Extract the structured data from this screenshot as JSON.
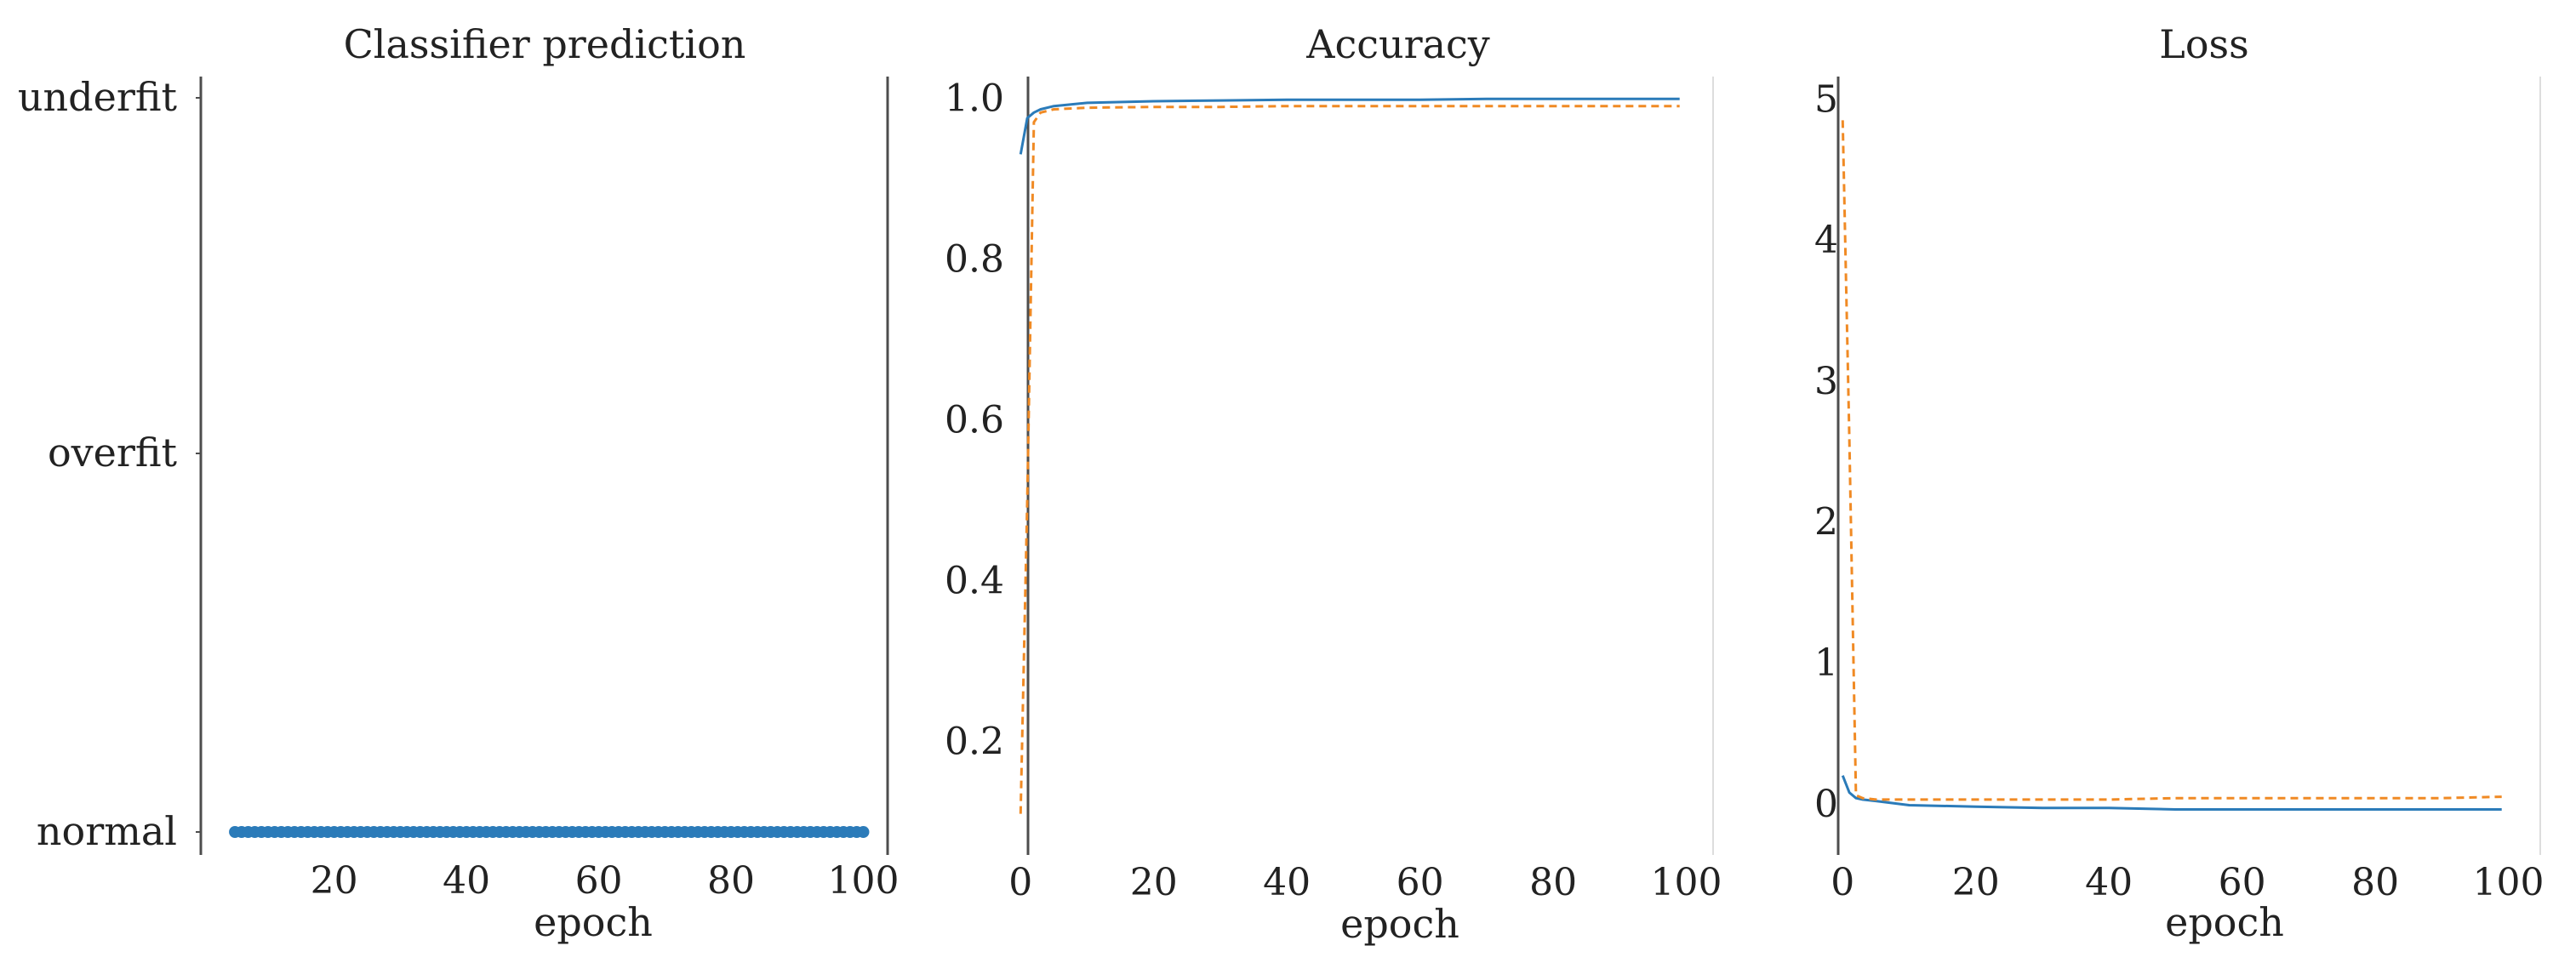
{
  "colors": {
    "train": "#2b7bb9",
    "validation": "#f08a24",
    "axis": "#4d4d4d",
    "text": "#222222"
  },
  "chart_data": [
    {
      "type": "scatter",
      "title": "Classifier prediction",
      "xlabel": "epoch",
      "ylabel": "",
      "xlim": [
        1,
        102
      ],
      "xticks": [
        20,
        40,
        60,
        80,
        100
      ],
      "categories": [
        "underfit",
        "overfit",
        "normal"
      ],
      "series": [
        {
          "values": [
            "normal",
            "normal",
            "normal",
            "normal",
            "normal",
            "normal",
            "normal",
            "normal",
            "normal",
            "normal",
            "normal",
            "normal",
            "normal",
            "normal",
            "normal",
            "normal",
            "normal",
            "normal",
            "normal",
            "normal",
            "normal",
            "normal",
            "normal",
            "normal",
            "normal",
            "normal",
            "normal",
            "normal",
            "normal",
            "normal",
            "normal",
            "normal",
            "normal",
            "normal",
            "normal",
            "normal",
            "normal",
            "normal",
            "normal",
            "normal",
            "normal",
            "normal",
            "normal",
            "normal",
            "normal",
            "normal",
            "normal",
            "normal",
            "normal",
            "normal",
            "normal",
            "normal",
            "normal",
            "normal",
            "normal",
            "normal",
            "normal",
            "normal",
            "normal",
            "normal",
            "normal",
            "normal",
            "normal",
            "normal",
            "normal",
            "normal",
            "normal",
            "normal",
            "normal",
            "normal",
            "normal",
            "normal",
            "normal",
            "normal",
            "normal",
            "normal",
            "normal",
            "normal",
            "normal",
            "normal",
            "normal",
            "normal",
            "normal",
            "normal",
            "normal",
            "normal",
            "normal",
            "normal",
            "normal",
            "normal",
            "normal",
            "normal",
            "normal",
            "normal",
            "normal",
            "normal"
          ],
          "x": [
            5,
            6,
            7,
            8,
            9,
            10,
            11,
            12,
            13,
            14,
            15,
            16,
            17,
            18,
            19,
            20,
            21,
            22,
            23,
            24,
            25,
            26,
            27,
            28,
            29,
            30,
            31,
            32,
            33,
            34,
            35,
            36,
            37,
            38,
            39,
            40,
            41,
            42,
            43,
            44,
            45,
            46,
            47,
            48,
            49,
            50,
            51,
            52,
            53,
            54,
            55,
            56,
            57,
            58,
            59,
            60,
            61,
            62,
            63,
            64,
            65,
            66,
            67,
            68,
            69,
            70,
            71,
            72,
            73,
            74,
            75,
            76,
            77,
            78,
            79,
            80,
            81,
            82,
            83,
            84,
            85,
            86,
            87,
            88,
            89,
            90,
            91,
            92,
            93,
            94,
            95,
            96,
            97,
            98,
            99,
            100
          ]
        }
      ]
    },
    {
      "type": "line",
      "title": "Accuracy",
      "xlabel": "epoch",
      "ylabel": "",
      "xlim": [
        -4,
        103
      ],
      "ylim": [
        0.08,
        1.05
      ],
      "xticks": [
        0,
        20,
        40,
        60,
        80,
        100
      ],
      "yticks": [
        0.2,
        0.4,
        0.6,
        0.8,
        1.0
      ],
      "x": [
        0,
        1,
        2,
        3,
        5,
        10,
        20,
        30,
        40,
        50,
        60,
        70,
        80,
        90,
        99
      ],
      "series": [
        {
          "style": "solid",
          "values": [
            0.93,
            0.975,
            0.982,
            0.986,
            0.99,
            0.994,
            0.996,
            0.997,
            0.998,
            0.998,
            0.998,
            0.999,
            0.999,
            0.999,
            0.999
          ]
        },
        {
          "style": "dashed",
          "values": [
            0.11,
            0.5,
            0.97,
            0.982,
            0.986,
            0.988,
            0.989,
            0.989,
            0.99,
            0.99,
            0.99,
            0.99,
            0.99,
            0.99,
            0.99
          ]
        }
      ]
    },
    {
      "type": "line",
      "title": "Loss",
      "xlabel": "epoch",
      "ylabel": "",
      "xlim": [
        -4,
        103
      ],
      "ylim": [
        -0.2,
        5.1
      ],
      "xticks": [
        0,
        20,
        40,
        60,
        80,
        100
      ],
      "yticks": [
        0,
        1,
        2,
        3,
        4,
        5
      ],
      "x": [
        0,
        1,
        2,
        3,
        5,
        10,
        20,
        30,
        40,
        50,
        60,
        70,
        80,
        90,
        99
      ],
      "series": [
        {
          "style": "solid",
          "values": [
            0.2,
            0.08,
            0.04,
            0.03,
            0.02,
            -0.01,
            -0.02,
            -0.03,
            -0.03,
            -0.04,
            -0.04,
            -0.04,
            -0.04,
            -0.04,
            -0.04
          ]
        },
        {
          "style": "dashed",
          "values": [
            4.85,
            2.6,
            0.06,
            0.04,
            0.03,
            0.03,
            0.03,
            0.03,
            0.03,
            0.04,
            0.04,
            0.04,
            0.04,
            0.04,
            0.05
          ]
        }
      ]
    }
  ]
}
